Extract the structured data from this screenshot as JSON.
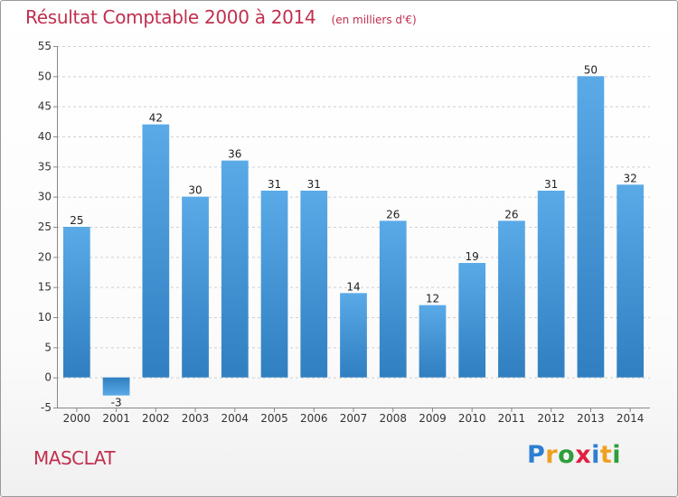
{
  "header": {
    "title": "Résultat Comptable 2000 à 2014",
    "unit": "(en milliers d'€)"
  },
  "commune": "MASCLAT",
  "logo": {
    "text": "Proxiti",
    "letters": [
      "P",
      "r",
      "o",
      "x",
      "i",
      "t",
      "i"
    ],
    "colors": [
      "#2e7fd3",
      "#f0a020",
      "#2e9e3a",
      "#e02040",
      "#2e7fd3",
      "#f0a020",
      "#2e9e3a"
    ]
  },
  "colors": {
    "bar_light": "#5aaae8",
    "bar_dark": "#2f7fc1",
    "grid": "#cfcfcf",
    "axis": "#888888",
    "title": "#c0304e"
  },
  "chart_data": {
    "type": "bar",
    "categories": [
      "2000",
      "2001",
      "2002",
      "2003",
      "2004",
      "2005",
      "2006",
      "2007",
      "2008",
      "2009",
      "2010",
      "2011",
      "2012",
      "2013",
      "2014"
    ],
    "values": [
      25,
      -3,
      42,
      30,
      36,
      31,
      31,
      14,
      26,
      12,
      19,
      26,
      31,
      50,
      32
    ],
    "value_labels": [
      "25",
      "-3",
      "42",
      "30",
      "36",
      "31",
      "31",
      "14",
      "26",
      "12",
      "19",
      "26",
      "31",
      "50",
      "32"
    ],
    "title": "Résultat Comptable 2000 à 2014",
    "subtitle": "(en milliers d'€)",
    "xlabel": "",
    "ylabel": "",
    "ylim": [
      -5,
      55
    ],
    "yticks": [
      -5,
      0,
      5,
      10,
      15,
      20,
      25,
      30,
      35,
      40,
      45,
      50,
      55
    ],
    "ytick_labels": [
      "-5",
      "0",
      "5",
      "10",
      "15",
      "20",
      "25",
      "30",
      "35",
      "40",
      "45",
      "50",
      "55"
    ],
    "grid": true,
    "legend": "none"
  }
}
